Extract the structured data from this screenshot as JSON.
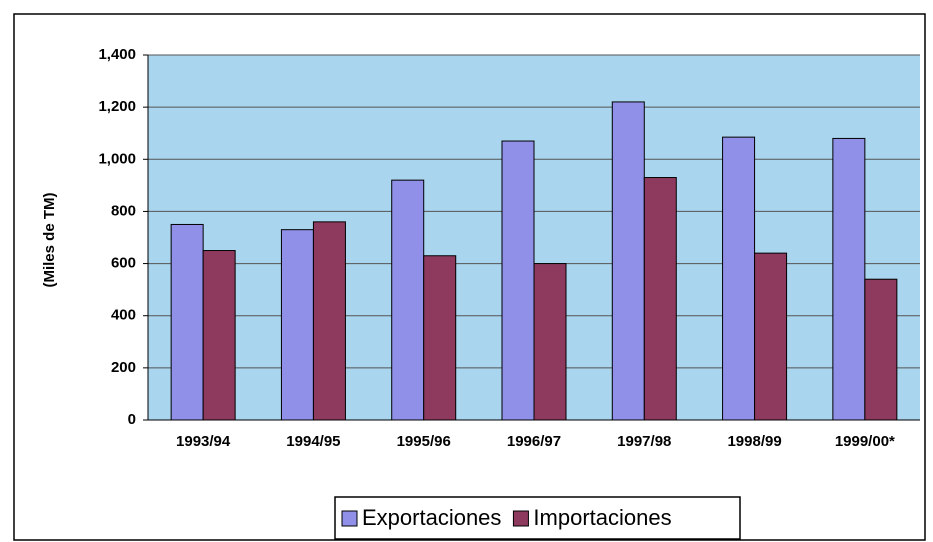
{
  "chart_data": {
    "type": "bar",
    "y_label": "(Miles de TM)",
    "categories": [
      "1993/94",
      "1994/95",
      "1995/96",
      "1996/97",
      "1997/98",
      "1998/99",
      "1999/00*"
    ],
    "series": [
      {
        "name": "Exportaciones",
        "color": "#9090e8",
        "values": [
          750,
          730,
          920,
          1070,
          1220,
          1085,
          1080
        ]
      },
      {
        "name": "Importaciones",
        "color": "#8e3a5e",
        "values": [
          650,
          760,
          630,
          600,
          930,
          640,
          540
        ]
      }
    ],
    "ylim": [
      0,
      1400
    ],
    "yticks": [
      0,
      200,
      400,
      600,
      800,
      {
        "value": 1000,
        "label": "1,000"
      },
      {
        "value": 1200,
        "label": "1,200"
      },
      {
        "value": 1400,
        "label": "1,400"
      }
    ],
    "grid": true,
    "legend": "bottom"
  }
}
